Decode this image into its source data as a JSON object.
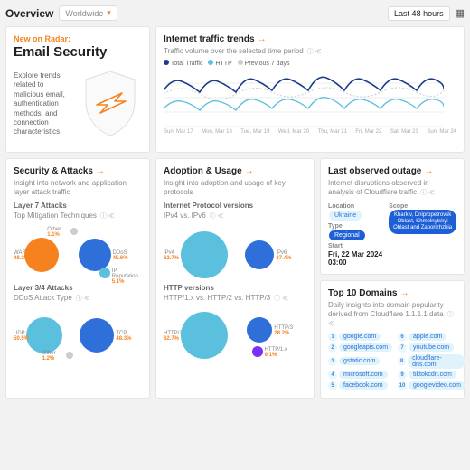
{
  "top": {
    "title": "Overview",
    "region": "Worldwide",
    "range": "Last 48 hours"
  },
  "featured": {
    "tag": "New on Radar:",
    "title": "Email Security",
    "desc": "Explore trends related to malicious email, authentication methods, and connection characteristics"
  },
  "colors": {
    "orange": "#f6821f",
    "blue": "#2e6fd9",
    "lightblue": "#5bc0de",
    "darkblue": "#1b3a8a",
    "grey": "#cccccc",
    "shield_fill": "#f7f7f7",
    "shield_stroke": "#e0e0e0"
  },
  "traffic": {
    "title": "Internet traffic trends",
    "sub": "Traffic volume over the selected time period",
    "legend": [
      {
        "label": "Total Traffic",
        "color": "#1b3a8a"
      },
      {
        "label": "HTTP",
        "color": "#5bc0de"
      },
      {
        "label": "Previous 7 days",
        "color": "#cccccc"
      }
    ],
    "xlabels": [
      "Sun, Mar 17",
      "Mon, Mar 18",
      "Tue, Mar 19",
      "Wed, Mar 20",
      "Thu, Mar 21",
      "Fri, Mar 22",
      "Sat, Mar 23",
      "Sun, Mar 24"
    ]
  },
  "security": {
    "title": "Security & Attacks",
    "sub": "Insight into network and application layer attack traffic",
    "layer7": {
      "title": "Layer 7 Attacks",
      "sub": "Top Mitigation Techniques",
      "bubbles": [
        {
          "label": "WAF",
          "pct": "48.2%",
          "r": 19,
          "x": 22,
          "y": 34,
          "color": "#f6821f"
        },
        {
          "label": "DDoS",
          "pct": "45.6%",
          "r": 18,
          "x": 64,
          "y": 34,
          "color": "#2e6fd9"
        },
        {
          "label": "Other",
          "pct": "1.1%",
          "r": 4,
          "x": 48,
          "y": 8,
          "color": "#cccccc"
        },
        {
          "label": "IP Reputation",
          "pct": "5.1%",
          "r": 6,
          "x": 72,
          "y": 54,
          "color": "#5bc0de"
        }
      ]
    },
    "layer34": {
      "title": "Layer 3/4 Attacks",
      "sub": "DDoS Attack Type",
      "bubbles": [
        {
          "label": "UDP",
          "pct": "50.5%",
          "r": 20,
          "x": 24,
          "y": 32,
          "color": "#5bc0de"
        },
        {
          "label": "TCP",
          "pct": "48.3%",
          "r": 19,
          "x": 66,
          "y": 32,
          "color": "#2e6fd9"
        },
        {
          "label": "Other",
          "pct": "1.2%",
          "r": 4,
          "x": 44,
          "y": 54,
          "color": "#cccccc"
        }
      ]
    }
  },
  "outage": {
    "title": "Last observed outage",
    "sub": "Internet disruptions observed in analysis of Cloudflare traffic",
    "location_lbl": "Location",
    "location": "Ukraine",
    "type_lbl": "Type",
    "type": "Regional",
    "scope_lbl": "Scope",
    "scope": "Kharkiv, Dnipropetrovsk Oblast, Khmelnytskyi Oblast and Zaporizhzhia",
    "start_lbl": "Start",
    "start": "Fri, 22 Mar 2024 03:00"
  },
  "domains": {
    "title": "Top 10 Domains",
    "sub": "Daily insights into domain popularity derived from Cloudflare 1.1.1.1 data",
    "items": [
      "google.com",
      "googleapis.com",
      "gstatic.com",
      "microsoft.com",
      "facebook.com",
      "apple.com",
      "youtube.com",
      "cloudflare-dns.com",
      "tiktokcdn.com",
      "googlevideo.com"
    ]
  },
  "adoption": {
    "title": "Adoption & Usage",
    "sub": "Insight into adoption and usage of key protocols",
    "ipv": {
      "title": "Internet Protocol versions",
      "sub": "IPv4 vs. IPv6",
      "bubbles": [
        {
          "label": "IPv4",
          "pct": "62.7%",
          "r": 26,
          "x": 32,
          "y": 34,
          "color": "#5bc0de"
        },
        {
          "label": "IPv6",
          "pct": "37.4%",
          "r": 16,
          "x": 76,
          "y": 34,
          "color": "#2e6fd9"
        }
      ]
    },
    "http": {
      "title": "HTTP versions",
      "sub": "HTTP/1.x vs. HTTP/2 vs. HTTP/3",
      "bubbles": [
        {
          "label": "HTTP/2",
          "pct": "62.7%",
          "r": 26,
          "x": 32,
          "y": 32,
          "color": "#5bc0de"
        },
        {
          "label": "HTTP/3",
          "pct": "28.2%",
          "r": 14,
          "x": 76,
          "y": 26,
          "color": "#2e6fd9"
        },
        {
          "label": "HTTP/1.x",
          "pct": "9.1%",
          "r": 6,
          "x": 74,
          "y": 50,
          "color": "#7b2ff7"
        }
      ]
    }
  }
}
